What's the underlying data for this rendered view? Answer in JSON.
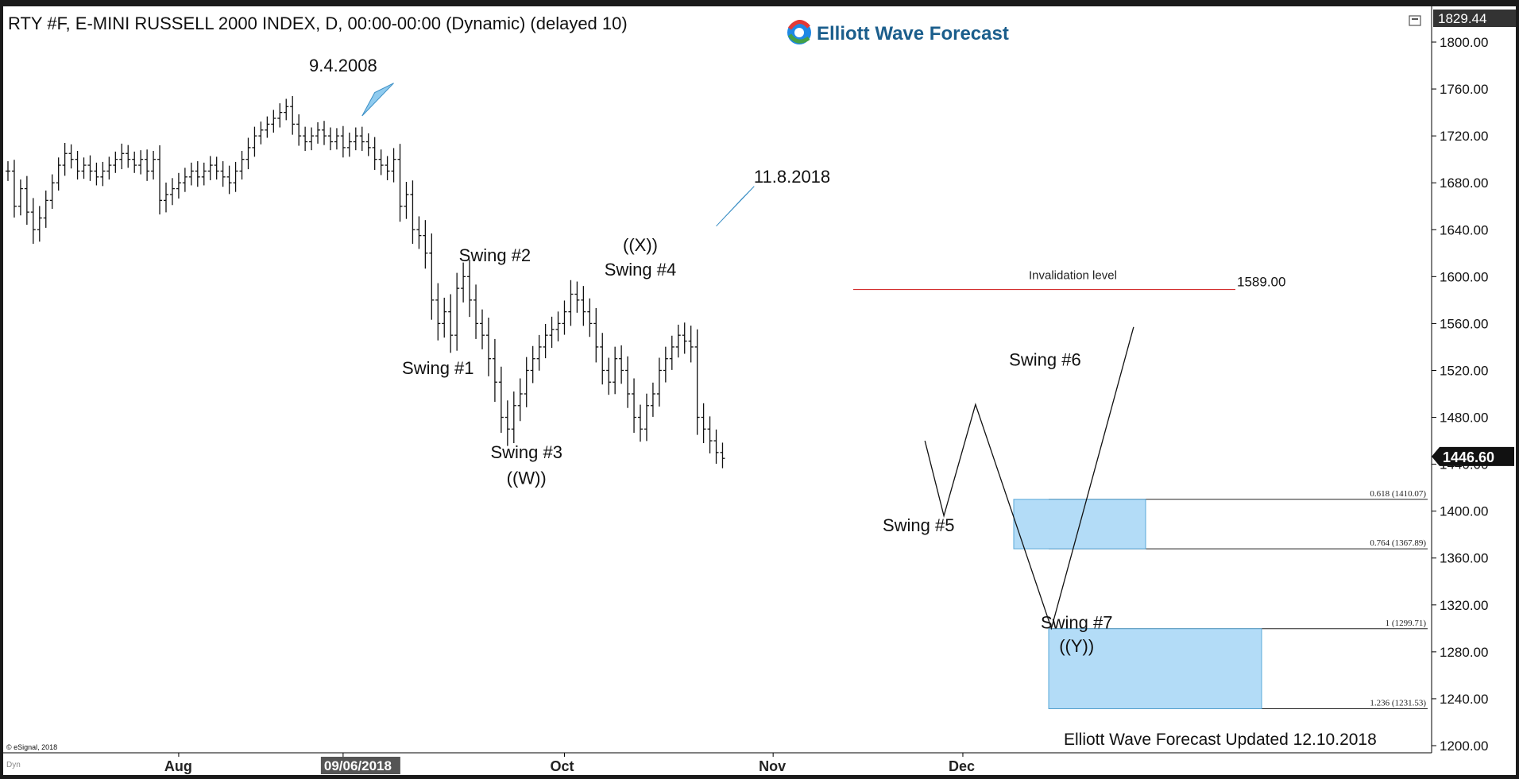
{
  "header": {
    "title": "RTY #F, E-MINI RUSSELL 2000 INDEX, D, 00:00-00:00 (Dynamic) (delayed 10)",
    "logo_text": "Elliott Wave Forecast",
    "brand_color": "#1b5e8c",
    "logo_colors": [
      "#e53935",
      "#43a047",
      "#1e88e5",
      "#fbc02d"
    ]
  },
  "footer": {
    "updated_text": "Elliott Wave Forecast Updated 12.10.2018",
    "copyright": "© eSignal, 2018",
    "dyn_label": "Dyn"
  },
  "chart_data": {
    "type": "ohlc-bar",
    "ylim": [
      1200,
      1830
    ],
    "y_ticks": [
      "1800.00",
      "1760.00",
      "1720.00",
      "1680.00",
      "1640.00",
      "1600.00",
      "1560.00",
      "1520.00",
      "1480.00",
      "1440.00",
      "1400.00",
      "1360.00",
      "1320.00",
      "1280.00",
      "1240.00",
      "1200.00"
    ],
    "y_tick_values": [
      1800,
      1760,
      1720,
      1680,
      1640,
      1600,
      1560,
      1520,
      1480,
      1440,
      1400,
      1360,
      1320,
      1280,
      1240,
      1200
    ],
    "top_price_label": "1829.44",
    "top_price_value": 1829.44,
    "last_price_label": "1446.60",
    "last_price_value": 1446.6,
    "x_tick_labels": [
      {
        "text": "Aug",
        "bar": 27
      },
      {
        "text": "09/06/2018",
        "bar": 53,
        "highlight": true
      },
      {
        "text": "Oct",
        "bar": 88
      },
      {
        "text": "Nov",
        "bar": 121
      },
      {
        "text": "Dec",
        "bar": 151
      }
    ],
    "bars_close_path": [
      1690,
      1660,
      1675,
      1655,
      1640,
      1650,
      1665,
      1680,
      1695,
      1705,
      1700,
      1690,
      1695,
      1690,
      1685,
      1690,
      1695,
      1700,
      1705,
      1700,
      1695,
      1700,
      1690,
      1700,
      1665,
      1670,
      1675,
      1680,
      1685,
      1690,
      1685,
      1690,
      1695,
      1690,
      1685,
      1680,
      1690,
      1700,
      1710,
      1720,
      1725,
      1730,
      1735,
      1740,
      1745,
      1730,
      1720,
      1715,
      1720,
      1725,
      1720,
      1715,
      1720,
      1710,
      1715,
      1720,
      1715,
      1710,
      1700,
      1695,
      1690,
      1700,
      1660,
      1670,
      1640,
      1635,
      1620,
      1580,
      1560,
      1570,
      1550,
      1590,
      1600,
      1580,
      1560,
      1550,
      1530,
      1510,
      1480,
      1470,
      1490,
      1500,
      1520,
      1530,
      1540,
      1550,
      1555,
      1560,
      1570,
      1585,
      1580,
      1570,
      1560,
      1540,
      1520,
      1510,
      1530,
      1520,
      1500,
      1480,
      1470,
      1490,
      1500,
      1520,
      1530,
      1540,
      1550,
      1545,
      1540,
      1480,
      1470,
      1460,
      1450,
      1445
    ],
    "hl_half_range": [
      14,
      16,
      13,
      18,
      20,
      17,
      14,
      12,
      11,
      15,
      13,
      12,
      11,
      14,
      12,
      13,
      12,
      11,
      14,
      12,
      11,
      13,
      14,
      12,
      20,
      17,
      15,
      14,
      13,
      12,
      14,
      12,
      13,
      12,
      14,
      16,
      13,
      12,
      14,
      13,
      12,
      11,
      12,
      13,
      11,
      15,
      14,
      13,
      12,
      11,
      13,
      12,
      11,
      14,
      13,
      12,
      13,
      12,
      15,
      14,
      13,
      16,
      22,
      18,
      20,
      19,
      22,
      28,
      24,
      20,
      25,
      22,
      20,
      24,
      22,
      20,
      25,
      28,
      22,
      24,
      20,
      22,
      19,
      18,
      17,
      16,
      18,
      17,
      16,
      20,
      18,
      20,
      19,
      22,
      20,
      18,
      17,
      19,
      20,
      22,
      18,
      17,
      16,
      18,
      17,
      16,
      15,
      18,
      22,
      25,
      20,
      18,
      16,
      14
    ],
    "annotations": [
      {
        "text": "9.4.2008",
        "bar": 53,
        "price": 1775
      },
      {
        "text": "11.8.2018",
        "bar": 124,
        "price": 1680
      },
      {
        "text": "Swing #1",
        "bar": 68,
        "price": 1517
      },
      {
        "text": "Swing #2",
        "bar": 77,
        "price": 1613
      },
      {
        "text": "Swing #3",
        "bar": 82,
        "price": 1445
      },
      {
        "text": "((W))",
        "bar": 82,
        "price": 1423
      },
      {
        "text": "((X))",
        "bar": 100,
        "price": 1622
      },
      {
        "text": "Swing #4",
        "bar": 100,
        "price": 1601
      },
      {
        "text": "Swing #6",
        "bar": 164,
        "price": 1524
      },
      {
        "text": "Swing #5",
        "bar": 144,
        "price": 1383
      },
      {
        "text": "Swing #7",
        "bar": 169,
        "price": 1300
      },
      {
        "text": "((Y))",
        "bar": 169,
        "price": 1280
      }
    ],
    "invalidation": {
      "label": "Invalidation level",
      "value_label": "1589.00",
      "value": 1589
    },
    "fib_levels": [
      {
        "label": "0.618 (1410.07)",
        "value": 1410.07
      },
      {
        "label": "0.764 (1367.89)",
        "value": 1367.89
      },
      {
        "label": "1 (1299.71)",
        "value": 1299.71
      },
      {
        "label": "1.236 (1231.53)",
        "value": 1231.53
      }
    ],
    "projection_path": [
      {
        "bar": 145,
        "price": 1460
      },
      {
        "bar": 148,
        "price": 1396
      },
      {
        "bar": 153,
        "price": 1491
      },
      {
        "bar": 165,
        "price": 1300
      },
      {
        "bar": 178,
        "price": 1557
      }
    ],
    "target_box_color": "#b3dcf7",
    "invalidation_color": "#d32f2f"
  }
}
